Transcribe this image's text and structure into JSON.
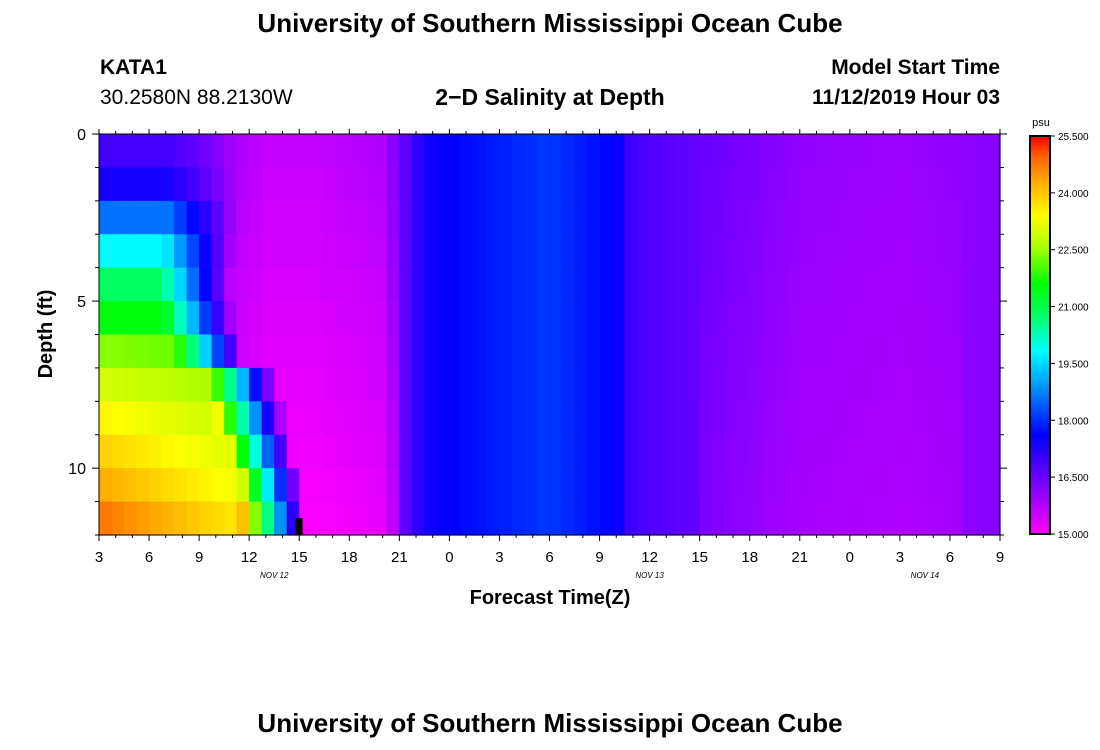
{
  "page": {
    "title": "University of Southern Mississippi Ocean Cube",
    "footer_title": "University of Southern Mississippi Ocean Cube"
  },
  "header": {
    "station_name": "KATA1",
    "station_coords": "30.2580N 88.2130W",
    "plot_title": "2−D Salinity at Depth",
    "model_start_label": "Model Start Time",
    "model_start_value": "11/12/2019 Hour 03"
  },
  "chart_data": {
    "type": "heatmap",
    "title": "2−D Salinity at Depth",
    "xlabel": "Forecast Time(Z)",
    "ylabel": "Depth (ft)",
    "x_hours_since_start": [
      0,
      54
    ],
    "x_tick_labels": [
      "3",
      "6",
      "9",
      "12",
      "15",
      "18",
      "21",
      "0",
      "3",
      "6",
      "9",
      "12",
      "15",
      "18",
      "21",
      "0",
      "3",
      "6",
      "9"
    ],
    "x_tick_hours": [
      0,
      3,
      6,
      9,
      12,
      15,
      18,
      21,
      24,
      27,
      30,
      33,
      36,
      39,
      42,
      45,
      48,
      51,
      54
    ],
    "date_labels": [
      {
        "text": "NOV 12",
        "hour": 10.5
      },
      {
        "text": "NOV 13",
        "hour": 33
      },
      {
        "text": "NOV 14",
        "hour": 49.5
      }
    ],
    "ylim": [
      0,
      12
    ],
    "y_major_ticks": [
      0,
      5,
      10
    ],
    "y_minor_ticks": [
      1,
      2,
      3,
      4,
      6,
      7,
      8,
      9,
      11,
      12
    ],
    "current_time_marker_hour": 12,
    "colorbar": {
      "unit": "psu",
      "min": 15.0,
      "max": 25.5,
      "tick_labels": [
        "25.500",
        "24.000",
        "22.500",
        "21.000",
        "19.500",
        "18.000",
        "16.500",
        "15.000"
      ],
      "tick_values": [
        25.5,
        24.0,
        22.5,
        21.0,
        19.5,
        18.0,
        16.5,
        15.0
      ]
    },
    "depth_layers_ft": [
      0.5,
      1.5,
      2.5,
      3.5,
      4.5,
      5.5,
      6.5,
      7.5,
      8.5,
      9.5,
      10.5,
      11.5
    ],
    "salinity_psu": {
      "surface_early": [
        16.9,
        17.4,
        18.6,
        19.8,
        20.8,
        21.5,
        22.4,
        23.0,
        23.5,
        23.9,
        24.3,
        24.8
      ],
      "mixing_front_hour_by_layer": [
        6.6,
        6.6,
        6.6,
        6.4,
        6.2,
        6.4,
        7.0,
        9.0,
        9.5,
        10.0,
        10.5,
        10.8
      ],
      "timeline": [
        {
          "hour": 0,
          "value": 16.9
        },
        {
          "hour": 7,
          "value": 16.0
        },
        {
          "hour": 10,
          "value": 15.6
        },
        {
          "hour": 13,
          "value": 15.6
        },
        {
          "hour": 17,
          "value": 15.8
        },
        {
          "hour": 18.5,
          "value": 16.7
        },
        {
          "hour": 19.5,
          "value": 17.4
        },
        {
          "hour": 22,
          "value": 17.7
        },
        {
          "hour": 27,
          "value": 18.1
        },
        {
          "hour": 31,
          "value": 17.6
        },
        {
          "hour": 32,
          "value": 16.9
        },
        {
          "hour": 35,
          "value": 16.6
        },
        {
          "hour": 42,
          "value": 16.1
        },
        {
          "hour": 48,
          "value": 16.0
        },
        {
          "hour": 54,
          "value": 16.2
        }
      ]
    }
  },
  "colors": {
    "background": "#ffffff",
    "axis": "#000000",
    "marker": "#000000"
  }
}
